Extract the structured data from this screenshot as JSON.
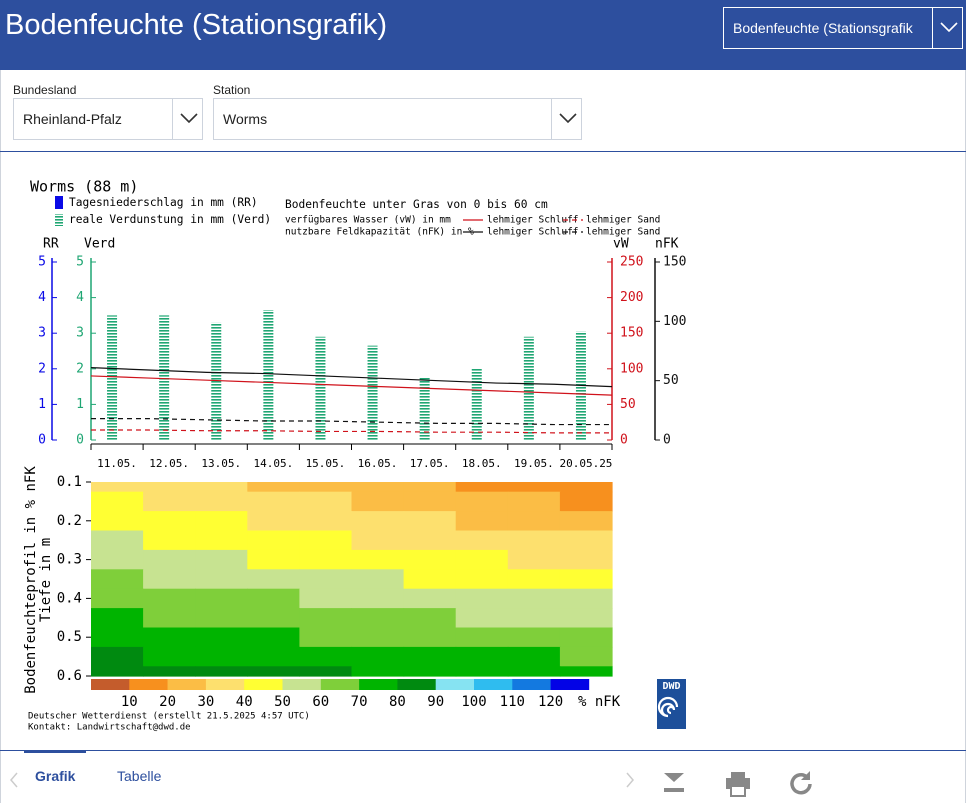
{
  "header": {
    "title": "Bodenfeuchte (Stationsgrafik)",
    "product_select": "Bodenfeuchte (Stationsgrafik"
  },
  "filters": [
    {
      "label": "Bundesland",
      "value": "Rheinland-Pfalz"
    },
    {
      "label": "Station",
      "value": "Worms"
    }
  ],
  "chart_data": {
    "type": "bar",
    "title": "Worms (88 m)",
    "legend": {
      "rr": "Tagesniederschlag in mm (RR)",
      "verd": "reale Verdunstung in mm (Verd)",
      "soil": "Bodenfeuchte unter Gras von 0 bis 60 cm"
    },
    "categories": [
      "11.05.",
      "12.05.",
      "13.05.",
      "14.05.",
      "15.05.",
      "16.05.",
      "17.05.",
      "18.05.",
      "19.05.",
      "20.05.25"
    ],
    "rr_axis": {
      "axis_label": "RR",
      "color": "#0a0ae6",
      "ylim": [
        0,
        5
      ],
      "yticks": [
        0,
        1,
        2,
        3,
        4,
        5
      ]
    },
    "verd": {
      "axis_label": "Verd",
      "color": "#1fa673",
      "ylim": [
        0,
        5
      ],
      "yticks": [
        0,
        1,
        2,
        3,
        4,
        5
      ],
      "values": [
        3.5,
        3.5,
        3.3,
        3.65,
        2.9,
        2.65,
        1.75,
        2.0,
        2.9,
        3.05
      ]
    },
    "vw": {
      "label": "verfügbares Wasser (vW) in mm",
      "axis_label": "vW",
      "color": "#d0121b",
      "ylim": [
        0,
        250
      ],
      "yticks": [
        0,
        50,
        100,
        150,
        200,
        250
      ],
      "series": [
        {
          "name": "lehmiger Schluff",
          "dash": false,
          "values": [
            90,
            87,
            84,
            81,
            78,
            75,
            72,
            69,
            66,
            63
          ]
        },
        {
          "name": "lehmiger Sand",
          "dash": true,
          "values": [
            14,
            14,
            13,
            13,
            12,
            12,
            11,
            11,
            10,
            10
          ]
        }
      ]
    },
    "nfk": {
      "label": "nutzbare Feldkapazität (nFK) in %",
      "axis_label": "nFK",
      "color": "#111111",
      "ylim": [
        0,
        150
      ],
      "yticks": [
        0,
        50,
        100,
        150
      ],
      "series": [
        {
          "name": "lehmiger Schluff",
          "dash": false,
          "values": [
            61,
            59,
            57,
            56,
            54,
            52,
            50,
            48,
            47,
            45
          ]
        },
        {
          "name": "lehmiger Sand",
          "dash": true,
          "values": [
            18,
            18,
            17,
            16,
            16,
            15,
            14,
            14,
            13,
            13
          ]
        }
      ]
    },
    "profile": {
      "ylabel": "Bodenfeuchteprofil in % nFK",
      "ylabel2": "Tiefe in m",
      "ylim": [
        0.1,
        0.6
      ],
      "yticks": [
        0.1,
        0.2,
        0.3,
        0.4,
        0.5,
        0.6
      ],
      "depths": [
        0.1,
        0.15,
        0.2,
        0.25,
        0.3,
        0.35,
        0.4,
        0.45,
        0.5,
        0.55,
        0.6
      ],
      "values": [
        [
          35,
          32,
          30,
          27,
          25,
          22,
          20,
          17,
          15,
          12
        ],
        [
          40,
          38,
          35,
          33,
          30,
          28,
          26,
          23,
          21,
          18
        ],
        [
          45,
          43,
          40,
          38,
          36,
          34,
          31,
          29,
          27,
          25
        ],
        [
          50,
          48,
          46,
          44,
          42,
          39,
          37,
          35,
          33,
          31
        ],
        [
          55,
          53,
          51,
          49,
          47,
          45,
          43,
          41,
          39,
          37
        ],
        [
          60,
          58,
          56,
          55,
          53,
          51,
          49,
          47,
          45,
          44
        ],
        [
          65,
          63,
          62,
          60,
          58,
          57,
          55,
          53,
          51,
          50
        ],
        [
          70,
          68,
          67,
          65,
          64,
          62,
          61,
          59,
          58,
          56
        ],
        [
          75,
          74,
          72,
          71,
          69,
          68,
          67,
          65,
          64,
          62
        ],
        [
          80,
          79,
          77,
          76,
          75,
          74,
          73,
          71,
          70,
          69
        ],
        [
          85,
          84,
          83,
          82,
          81,
          79,
          78,
          77,
          76,
          75
        ]
      ]
    },
    "scale": {
      "ticks": [
        10,
        20,
        30,
        40,
        50,
        60,
        70,
        80,
        90,
        100,
        110,
        120
      ],
      "unit": "% nFK",
      "colors": [
        "#c45c2c",
        "#f7901e",
        "#fbbd45",
        "#fde06e",
        "#ffff33",
        "#c7e391",
        "#7fcf3a",
        "#00b400",
        "#008a10",
        "#86e3f2",
        "#2fbcef",
        "#1379e0",
        "#0303e6"
      ]
    },
    "source": "Deutscher Wetterdienst (erstellt 21.5.2025 4:57 UTC)",
    "contact": "Kontakt: Landwirtschaft@dwd.de",
    "logo": "DWD"
  },
  "tabs": [
    "Grafik",
    "Tabelle"
  ]
}
